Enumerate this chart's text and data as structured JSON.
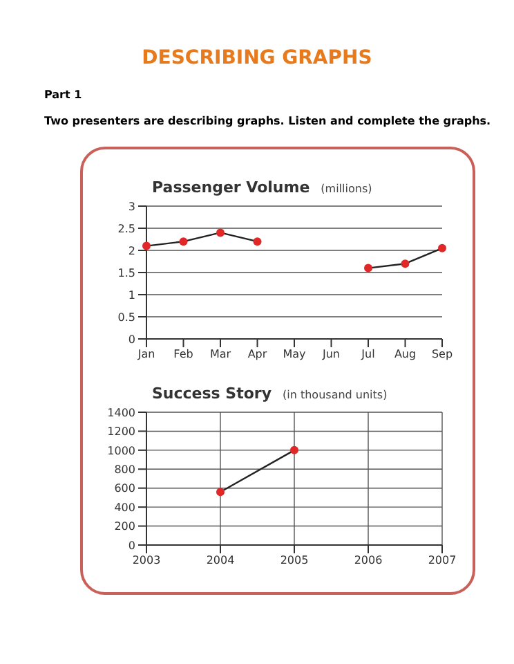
{
  "chart_data": [
    {
      "type": "line",
      "title": "Passenger Volume",
      "subtitle": "(millions)",
      "annotations": [
        "DESCRIBING GRAPHS",
        "Part 1",
        "Two presenters are describing graphs. Listen and complete the graphs."
      ],
      "categories": [
        "Jan",
        "Feb",
        "Mar",
        "Apr",
        "May",
        "Jun",
        "Jul",
        "Aug",
        "Sep"
      ],
      "series": [
        {
          "color": "#222222",
          "colors": [
            "#e02828",
            "#e02828",
            "#e02828",
            "#e02828",
            "#e02828",
            "#e02828",
            "#e02828",
            "#e02828",
            "#e02828"
          ],
          "values": [
            2.1,
            2.2,
            2.4,
            2.2,
            null,
            null,
            1.6,
            1.7,
            2.05
          ]
        }
      ],
      "ylim": [
        0,
        3
      ],
      "yticks": [
        0,
        0.5,
        1,
        1.5,
        2,
        2.5,
        3
      ],
      "grid": "y",
      "marker": "circle",
      "legend": false
    },
    {
      "type": "line",
      "title": "Success Story",
      "subtitle": "(in thousand units)",
      "categories": [
        "2003",
        "2004",
        "2005",
        "2006",
        "2007"
      ],
      "series": [
        {
          "color": "#222222",
          "colors": [
            "#e02828",
            "#e02828",
            "#e02828",
            "#e02828",
            "#e02828"
          ],
          "values": [
            null,
            560,
            1000,
            null,
            null
          ]
        }
      ],
      "ylim": [
        0,
        1400
      ],
      "yticks": [
        0,
        200,
        400,
        600,
        800,
        1000,
        1200,
        1400
      ],
      "grid": true,
      "marker": "circle",
      "legend": false
    }
  ]
}
